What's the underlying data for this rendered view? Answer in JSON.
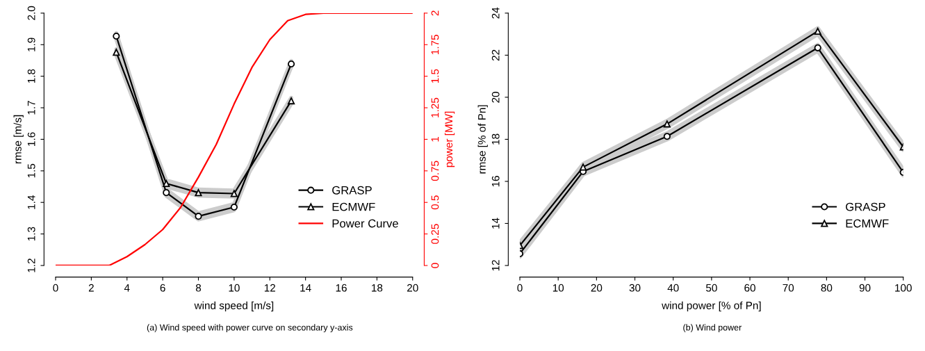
{
  "chart_data": [
    {
      "type": "line",
      "xlabel": "wind speed [m/s]",
      "ylabel": "rmse [m/s]",
      "y2label": "power [MW]",
      "xlim": [
        0,
        20
      ],
      "xticks": [
        0,
        2,
        4,
        6,
        8,
        10,
        12,
        14,
        16,
        18,
        20
      ],
      "ylim": [
        1.2,
        2.0
      ],
      "yticks": [
        {
          "value": 1.2,
          "label": "1.2"
        },
        {
          "value": 1.3,
          "label": "1.3"
        },
        {
          "value": 1.4,
          "label": "1.4"
        },
        {
          "value": 1.5,
          "label": "1.5"
        },
        {
          "value": 1.6,
          "label": "1.6"
        },
        {
          "value": 1.7,
          "label": "1.7"
        },
        {
          "value": 1.8,
          "label": "1.8"
        },
        {
          "value": 1.9,
          "label": "1.9"
        },
        {
          "value": 2.0,
          "label": "2.0"
        }
      ],
      "y2lim": [
        0,
        2
      ],
      "y2ticks": [
        0,
        0.25,
        0.5,
        0.75,
        1,
        1.25,
        1.5,
        1.75,
        2
      ],
      "legend": "bottom right",
      "grid": false,
      "annotations": [
        "(a) Wind speed with power curve on secondary y-axis"
      ],
      "series": [
        {
          "name": "GRASP",
          "color": "#000000",
          "marker": "circle",
          "x": [
            3.4,
            6.2,
            8,
            10,
            13.2
          ],
          "values": [
            1.927,
            1.431,
            1.356,
            1.385,
            1.839
          ],
          "lower": [
            1.917,
            1.421,
            1.346,
            1.375,
            1.829
          ],
          "upper": [
            1.937,
            1.441,
            1.366,
            1.395,
            1.849
          ]
        },
        {
          "name": "ECMWF",
          "color": "#000000",
          "marker": "triangle",
          "x": [
            3.4,
            6.2,
            8,
            10,
            13.2
          ],
          "values": [
            1.876,
            1.46,
            1.431,
            1.428,
            1.722
          ],
          "lower": [
            1.866,
            1.45,
            1.421,
            1.418,
            1.712
          ],
          "upper": [
            1.886,
            1.47,
            1.441,
            1.438,
            1.732
          ]
        },
        {
          "name": "Power Curve",
          "color": "#ff0000",
          "marker": "none",
          "axis": "y2",
          "x": [
            0,
            1,
            2,
            3,
            4,
            5,
            6,
            7,
            8,
            9,
            10,
            11,
            12,
            13,
            14,
            15,
            16,
            17,
            18,
            19,
            20
          ],
          "values": [
            0,
            0,
            0,
            0,
            0.07,
            0.165,
            0.285,
            0.46,
            0.7,
            0.96,
            1.28,
            1.57,
            1.79,
            1.94,
            1.99,
            2,
            2,
            2,
            2,
            2,
            2
          ]
        }
      ]
    },
    {
      "type": "line",
      "xlabel": "wind power [% of Pn]",
      "ylabel": "rmse [% of Pn]",
      "xlim": [
        0,
        100
      ],
      "xticks": [
        0,
        10,
        20,
        30,
        40,
        50,
        60,
        70,
        80,
        90,
        100
      ],
      "ylim": [
        12,
        24
      ],
      "yticks": [
        12,
        14,
        16,
        18,
        20,
        22,
        24
      ],
      "legend": "bottom right",
      "grid": false,
      "annotations": [
        "(b) Wind power"
      ],
      "series": [
        {
          "name": "GRASP",
          "color": "#000000",
          "marker": "circle",
          "x": [
            0,
            16.5,
            38.4,
            77.7,
            100
          ],
          "values": [
            12.56,
            16.47,
            18.14,
            22.35,
            16.43
          ],
          "lower": [
            12.41,
            16.32,
            17.99,
            22.2,
            16.28
          ],
          "upper": [
            12.71,
            16.62,
            18.29,
            22.5,
            16.58
          ]
        },
        {
          "name": "ECMWF",
          "color": "#000000",
          "marker": "triangle",
          "x": [
            0,
            16.5,
            38.4,
            77.7,
            100
          ],
          "values": [
            12.95,
            16.68,
            18.73,
            23.14,
            17.64
          ],
          "lower": [
            12.8,
            16.53,
            18.58,
            22.99,
            17.49
          ],
          "upper": [
            13.1,
            16.83,
            18.88,
            23.29,
            17.79
          ]
        }
      ]
    }
  ]
}
